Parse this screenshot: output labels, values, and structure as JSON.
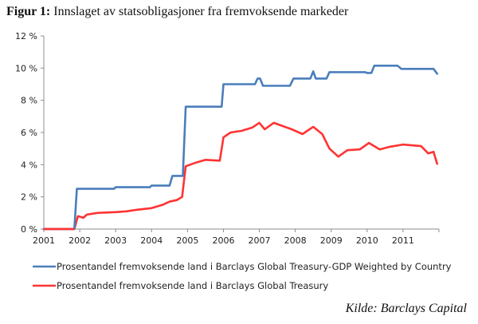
{
  "figure": {
    "label": "Figur 1:",
    "title": "Innslaget av statsobligasjoner fra fremvoksende markeder",
    "source": "Kilde: Barclays Capital"
  },
  "chart_data": {
    "type": "line",
    "title": "Innslaget av statsobligasjoner fra fremvoksende markeder",
    "xlabel": "",
    "ylabel": "",
    "xlim": [
      2001,
      2012
    ],
    "ylim": [
      0,
      12
    ],
    "x_ticks": [
      2001,
      2002,
      2003,
      2004,
      2005,
      2006,
      2007,
      2008,
      2009,
      2010,
      2011
    ],
    "x_tick_labels": [
      "2001",
      "2002",
      "2003",
      "2004",
      "2005",
      "2006",
      "2007",
      "2008",
      "2009",
      "2010",
      "2011"
    ],
    "y_ticks": [
      0,
      2,
      4,
      6,
      8,
      10,
      12
    ],
    "y_tick_labels": [
      "0 %",
      "2 %",
      "4 %",
      "6 %",
      "8 %",
      "10 %",
      "12 %"
    ],
    "grid": false,
    "legend_position": "bottom",
    "series": [
      {
        "name": "Prosentandel fremvoksende land i Barclays Global Treasury-GDP Weighted by Country",
        "color": "#4a7ebb",
        "points": [
          [
            2001.0,
            0
          ],
          [
            2001.85,
            0
          ],
          [
            2001.92,
            2.5
          ],
          [
            2002.95,
            2.5
          ],
          [
            2003.0,
            2.6
          ],
          [
            2003.95,
            2.6
          ],
          [
            2004.0,
            2.7
          ],
          [
            2004.5,
            2.7
          ],
          [
            2004.58,
            3.3
          ],
          [
            2004.87,
            3.3
          ],
          [
            2004.95,
            7.6
          ],
          [
            2005.95,
            7.6
          ],
          [
            2006.0,
            9.0
          ],
          [
            2006.88,
            9.0
          ],
          [
            2006.95,
            9.35
          ],
          [
            2007.02,
            9.35
          ],
          [
            2007.1,
            8.9
          ],
          [
            2007.85,
            8.9
          ],
          [
            2007.95,
            9.35
          ],
          [
            2008.42,
            9.35
          ],
          [
            2008.5,
            9.8
          ],
          [
            2008.57,
            9.35
          ],
          [
            2008.87,
            9.35
          ],
          [
            2008.95,
            9.75
          ],
          [
            2009.95,
            9.75
          ],
          [
            2010.0,
            9.7
          ],
          [
            2010.12,
            9.7
          ],
          [
            2010.2,
            10.15
          ],
          [
            2010.85,
            10.15
          ],
          [
            2010.95,
            9.95
          ],
          [
            2011.85,
            9.95
          ],
          [
            2011.95,
            9.65
          ]
        ]
      },
      {
        "name": "Prosentandel fremvoksende land i Barclays Global Treasury",
        "color": "#ff3333",
        "points": [
          [
            2001.0,
            0
          ],
          [
            2001.85,
            0
          ],
          [
            2001.95,
            0.8
          ],
          [
            2002.1,
            0.7
          ],
          [
            2002.2,
            0.9
          ],
          [
            2002.5,
            1.0
          ],
          [
            2003.0,
            1.05
          ],
          [
            2003.3,
            1.1
          ],
          [
            2003.6,
            1.2
          ],
          [
            2004.0,
            1.3
          ],
          [
            2004.3,
            1.5
          ],
          [
            2004.5,
            1.7
          ],
          [
            2004.7,
            1.8
          ],
          [
            2004.85,
            2.0
          ],
          [
            2004.95,
            3.9
          ],
          [
            2005.2,
            4.1
          ],
          [
            2005.5,
            4.3
          ],
          [
            2005.9,
            4.25
          ],
          [
            2006.0,
            5.7
          ],
          [
            2006.2,
            6.0
          ],
          [
            2006.5,
            6.1
          ],
          [
            2006.8,
            6.3
          ],
          [
            2007.0,
            6.6
          ],
          [
            2007.15,
            6.2
          ],
          [
            2007.4,
            6.6
          ],
          [
            2007.9,
            6.2
          ],
          [
            2008.2,
            5.9
          ],
          [
            2008.5,
            6.35
          ],
          [
            2008.75,
            5.9
          ],
          [
            2008.95,
            5.0
          ],
          [
            2009.2,
            4.5
          ],
          [
            2009.45,
            4.9
          ],
          [
            2009.8,
            4.95
          ],
          [
            2010.05,
            5.35
          ],
          [
            2010.35,
            4.95
          ],
          [
            2010.6,
            5.1
          ],
          [
            2011.0,
            5.25
          ],
          [
            2011.5,
            5.15
          ],
          [
            2011.7,
            4.7
          ],
          [
            2011.85,
            4.8
          ],
          [
            2011.95,
            4.05
          ]
        ]
      }
    ]
  }
}
